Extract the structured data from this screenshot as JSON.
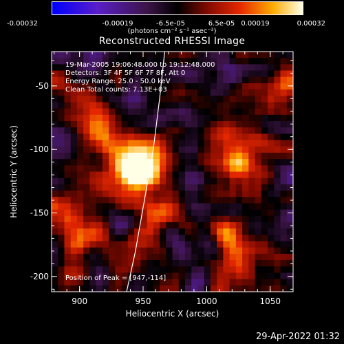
{
  "colorbar": {
    "ticks": [
      "-0.00032",
      "-0.00019",
      "-6.5e-05",
      "6.5e-05",
      "0.00019",
      "0.00032"
    ],
    "units": "(photons cm⁻² s⁻¹ asec⁻²)",
    "range": [
      -0.00032,
      0.00032
    ]
  },
  "chart_data": {
    "type": "heatmap",
    "title": "Reconstructed RHESSI Image",
    "xlabel": "Heliocentric X (arcsec)",
    "ylabel": "Heliocentric Y (arcsec)",
    "xlim": [
      878,
      1068
    ],
    "ylim": [
      -212,
      -23
    ],
    "xticks": [
      900,
      950,
      1000,
      1050
    ],
    "yticks": [
      -50,
      -100,
      -150,
      -200
    ],
    "annotations": [
      "19-Mar-2005 19:06:48.000 to 19:12:48.000",
      "Detectors: 3F 4F 5F 6F 7F 8F, Att 0",
      "Energy Range: 25.0 - 50.0 keV",
      "Clean     Total counts: 7.13E+03"
    ],
    "peak_label": "Position of Peak = [947,-114]",
    "peak": [
      947,
      -114
    ],
    "limb_curve": [
      [
        937,
        -212
      ],
      [
        944,
        -180
      ],
      [
        951,
        -140
      ],
      [
        958,
        -100
      ],
      [
        963,
        -60
      ],
      [
        967,
        -23
      ]
    ]
  },
  "footer": {
    "date": "29-Apr-2022 01:32"
  }
}
